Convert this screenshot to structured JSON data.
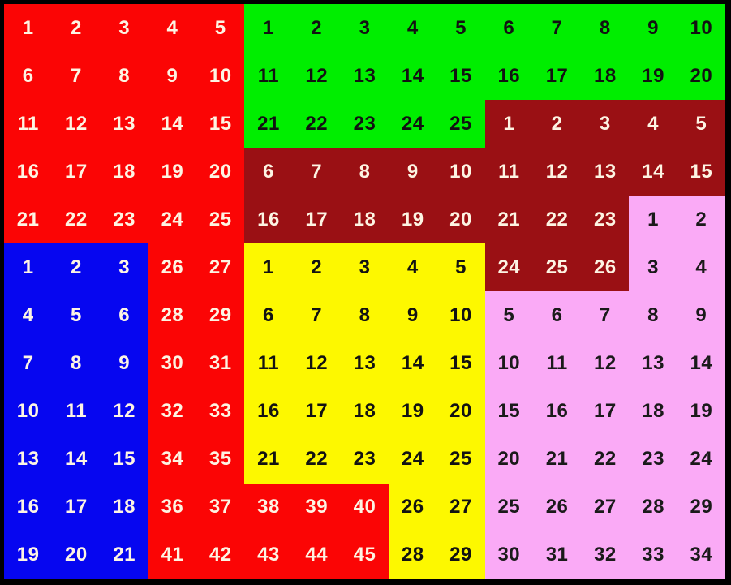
{
  "board": {
    "rows": 12,
    "cols": 15,
    "frame_color": "#000000",
    "region_keys": {
      "r": "red",
      "g": "green",
      "d": "dark_red",
      "b": "blue",
      "y": "yellow",
      "p": "pink"
    },
    "regions": {
      "red": {
        "fill": "#FB0505",
        "text": "#FDF4E3",
        "max_number": 45
      },
      "green": {
        "fill": "#00EE00",
        "text": "#121212",
        "max_number": 25
      },
      "dark_red": {
        "fill": "#9A1014",
        "text": "#FDF4E3",
        "max_number": 26
      },
      "blue": {
        "fill": "#0606F0",
        "text": "#FDF4E3",
        "max_number": 21
      },
      "yellow": {
        "fill": "#FDF800",
        "text": "#121212",
        "max_number": 29
      },
      "pink": {
        "fill": "#FAAAF6",
        "text": "#1A1A1A",
        "max_number": 34
      }
    },
    "cells": [
      [
        "r1",
        "r2",
        "r3",
        "r4",
        "r5",
        "g1",
        "g2",
        "g3",
        "g4",
        "g5",
        "g6",
        "g7",
        "g8",
        "g9",
        "g10"
      ],
      [
        "r6",
        "r7",
        "r8",
        "r9",
        "r10",
        "g11",
        "g12",
        "g13",
        "g14",
        "g15",
        "g16",
        "g17",
        "g18",
        "g19",
        "g20"
      ],
      [
        "r11",
        "r12",
        "r13",
        "r14",
        "r15",
        "g21",
        "g22",
        "g23",
        "g24",
        "g25",
        "d1",
        "d2",
        "d3",
        "d4",
        "d5"
      ],
      [
        "r16",
        "r17",
        "r18",
        "r19",
        "r20",
        "d6",
        "d7",
        "d8",
        "d9",
        "d10",
        "d11",
        "d12",
        "d13",
        "d14",
        "d15"
      ],
      [
        "r21",
        "r22",
        "r23",
        "r24",
        "r25",
        "d16",
        "d17",
        "d18",
        "d19",
        "d20",
        "d21",
        "d22",
        "d23",
        "p1",
        "p2"
      ],
      [
        "b1",
        "b2",
        "b3",
        "r26",
        "r27",
        "y1",
        "y2",
        "y3",
        "y4",
        "y5",
        "d24",
        "d25",
        "d26",
        "p3",
        "p4"
      ],
      [
        "b4",
        "b5",
        "b6",
        "r28",
        "r29",
        "y6",
        "y7",
        "y8",
        "y9",
        "y10",
        "p5",
        "p6",
        "p7",
        "p8",
        "p9"
      ],
      [
        "b7",
        "b8",
        "b9",
        "r30",
        "r31",
        "y11",
        "y12",
        "y13",
        "y14",
        "y15",
        "p10",
        "p11",
        "p12",
        "p13",
        "p14"
      ],
      [
        "b10",
        "b11",
        "b12",
        "r32",
        "r33",
        "y16",
        "y17",
        "y18",
        "y19",
        "y20",
        "p15",
        "p16",
        "p17",
        "p18",
        "p19"
      ],
      [
        "b13",
        "b14",
        "b15",
        "r34",
        "r35",
        "y21",
        "y22",
        "y23",
        "y24",
        "y25",
        "p20",
        "p21",
        "p22",
        "p23",
        "p24"
      ],
      [
        "b16",
        "b17",
        "b18",
        "r36",
        "r37",
        "r38",
        "r39",
        "r40",
        "y26",
        "y27",
        "p25",
        "p26",
        "p27",
        "p28",
        "p29"
      ],
      [
        "b19",
        "b20",
        "b21",
        "r41",
        "r42",
        "r43",
        "r44",
        "r45",
        "y28",
        "y29",
        "p30",
        "p31",
        "p32",
        "p33",
        "p34"
      ]
    ]
  }
}
